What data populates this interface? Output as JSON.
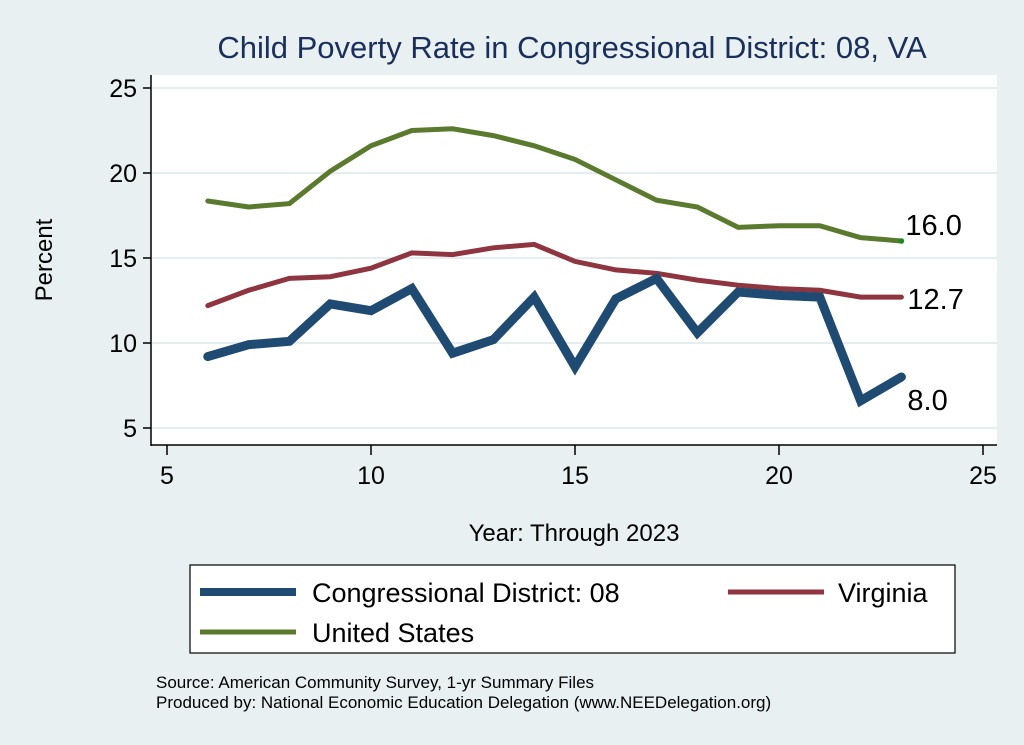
{
  "chart_data": {
    "type": "line",
    "title": "Child Poverty Rate in Congressional District:  08, VA",
    "xlabel": "Year: Through 2023",
    "ylabel": "Percent",
    "xlim": [
      5,
      25
    ],
    "ylim": [
      5,
      25
    ],
    "xticks": [
      5,
      10,
      15,
      20,
      25
    ],
    "yticks": [
      5,
      10,
      15,
      20,
      25
    ],
    "grid": true,
    "x": [
      6,
      7,
      8,
      9,
      10,
      11,
      12,
      13,
      14,
      15,
      16,
      17,
      18,
      19,
      20,
      21,
      22,
      23
    ],
    "series": [
      {
        "name": "Congressional District:  08",
        "color": "#1f4b73",
        "values": [
          9.2,
          9.9,
          10.1,
          12.3,
          11.9,
          13.2,
          9.4,
          10.2,
          12.7,
          8.6,
          12.6,
          13.8,
          10.6,
          13.0,
          12.8,
          12.7,
          6.6,
          8.0
        ],
        "end_label": "8.0"
      },
      {
        "name": "Virginia",
        "color": "#8f3540",
        "values": [
          12.2,
          13.1,
          13.8,
          13.9,
          14.4,
          15.3,
          15.2,
          15.6,
          15.8,
          14.8,
          14.3,
          14.1,
          13.7,
          13.4,
          13.2,
          13.1,
          12.7,
          12.7
        ],
        "end_label": "12.7"
      },
      {
        "name": "United States",
        "color": "#5a7a2e",
        "values": [
          18.35,
          18.0,
          18.2,
          20.1,
          21.6,
          22.5,
          22.6,
          22.2,
          21.6,
          20.8,
          19.6,
          18.4,
          18.0,
          16.8,
          16.9,
          16.9,
          16.2,
          16.0
        ],
        "end_label": "16.0"
      }
    ],
    "legend": {
      "placement": "bottom",
      "entries": [
        "Congressional District:  08",
        "Virginia",
        "United States"
      ]
    },
    "notes": [
      "Source: American Community Survey, 1-yr Summary Files",
      "Produced by: National Economic Education Delegation (www.NEEDelegation.org)"
    ]
  },
  "colors": {
    "background": "#e8f0f2",
    "plot_background": "#ffffff",
    "title": "#1a2f5a",
    "endpoint_dot": "#1a8a1a"
  }
}
